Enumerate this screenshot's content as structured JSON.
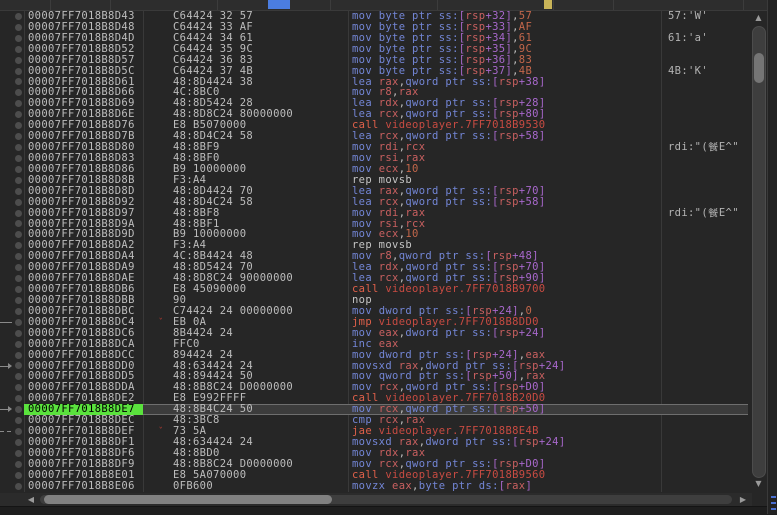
{
  "colors": {
    "accent_blue": "#4b7de0",
    "accent_yellow": "#c9b458",
    "highlight_green": "#5ae23d",
    "selection_bg": "#3c3c3c",
    "mnemonic_blue": "#7386d6",
    "bracket_purple": "#a868cc",
    "register_red": "#c96060",
    "immediate_orange": "#c2664a",
    "flow_mnemonic": "#e0604a",
    "flow_target": "#c84b42",
    "text_gray": "#bcbcbc"
  },
  "glyphs": {
    "up_arrow": "▲",
    "down_arrow": "▼",
    "left_arrow": "◀",
    "right_arrow": "▶",
    "jump_caret": "ˇ",
    "breakpoint_dot": "dot"
  },
  "rows": [
    {
      "addr": "00007FF7018B8D43",
      "bytes": "C64424 32 57",
      "disasm": "mov byte ptr ss:[rsp+32],57",
      "type": "n",
      "comment": "57:'W'",
      "caret": false,
      "gutter": "",
      "sel": false
    },
    {
      "addr": "00007FF7018B8D48",
      "bytes": "C64424 33 AF",
      "disasm": "mov byte ptr ss:[rsp+33],AF",
      "type": "n",
      "comment": "",
      "caret": false,
      "gutter": "",
      "sel": false
    },
    {
      "addr": "00007FF7018B8D4D",
      "bytes": "C64424 34 61",
      "disasm": "mov byte ptr ss:[rsp+34],61",
      "type": "n",
      "comment": "61:'a'",
      "caret": false,
      "gutter": "",
      "sel": false
    },
    {
      "addr": "00007FF7018B8D52",
      "bytes": "C64424 35 9C",
      "disasm": "mov byte ptr ss:[rsp+35],9C",
      "type": "n",
      "comment": "",
      "caret": false,
      "gutter": "",
      "sel": false
    },
    {
      "addr": "00007FF7018B8D57",
      "bytes": "C64424 36 83",
      "disasm": "mov byte ptr ss:[rsp+36],83",
      "type": "n",
      "comment": "",
      "caret": false,
      "gutter": "",
      "sel": false
    },
    {
      "addr": "00007FF7018B8D5C",
      "bytes": "C64424 37 4B",
      "disasm": "mov byte ptr ss:[rsp+37],4B",
      "type": "n",
      "comment": "4B:'K'",
      "caret": false,
      "gutter": "",
      "sel": false
    },
    {
      "addr": "00007FF7018B8D61",
      "bytes": "48:8D4424 38",
      "disasm": "lea rax,qword ptr ss:[rsp+38]",
      "type": "n",
      "comment": "",
      "caret": false,
      "gutter": "",
      "sel": false
    },
    {
      "addr": "00007FF7018B8D66",
      "bytes": "4C:8BC0",
      "disasm": "mov r8,rax",
      "type": "n",
      "comment": "",
      "caret": false,
      "gutter": "",
      "sel": false
    },
    {
      "addr": "00007FF7018B8D69",
      "bytes": "48:8D5424 28",
      "disasm": "lea rdx,qword ptr ss:[rsp+28]",
      "type": "n",
      "comment": "",
      "caret": false,
      "gutter": "",
      "sel": false
    },
    {
      "addr": "00007FF7018B8D6E",
      "bytes": "48:8D8C24 80000000",
      "disasm": "lea rcx,qword ptr ss:[rsp+80]",
      "type": "n",
      "comment": "",
      "caret": false,
      "gutter": "",
      "sel": false
    },
    {
      "addr": "00007FF7018B8D76",
      "bytes": "E8 B5070000",
      "disasm": "call videoplayer.7FF7018B9530",
      "type": "f",
      "comment": "",
      "caret": false,
      "gutter": "",
      "sel": false
    },
    {
      "addr": "00007FF7018B8D7B",
      "bytes": "48:8D4C24 58",
      "disasm": "lea rcx,qword ptr ss:[rsp+58]",
      "type": "n",
      "comment": "",
      "caret": false,
      "gutter": "",
      "sel": false
    },
    {
      "addr": "00007FF7018B8D80",
      "bytes": "48:8BF9",
      "disasm": "mov rdi,rcx",
      "type": "n",
      "comment": "rdi:\"(餐E^\"",
      "caret": false,
      "gutter": "",
      "sel": false
    },
    {
      "addr": "00007FF7018B8D83",
      "bytes": "48:8BF0",
      "disasm": "mov rsi,rax",
      "type": "n",
      "comment": "",
      "caret": false,
      "gutter": "",
      "sel": false
    },
    {
      "addr": "00007FF7018B8D86",
      "bytes": "B9 10000000",
      "disasm": "mov ecx,10",
      "type": "n",
      "comment": "",
      "caret": false,
      "gutter": "",
      "sel": false
    },
    {
      "addr": "00007FF7018B8D8B",
      "bytes": "F3:A4",
      "disasm": "rep movsb",
      "type": "p",
      "comment": "",
      "caret": false,
      "gutter": "",
      "sel": false
    },
    {
      "addr": "00007FF7018B8D8D",
      "bytes": "48:8D4424 70",
      "disasm": "lea rax,qword ptr ss:[rsp+70]",
      "type": "n",
      "comment": "",
      "caret": false,
      "gutter": "",
      "sel": false
    },
    {
      "addr": "00007FF7018B8D92",
      "bytes": "48:8D4C24 58",
      "disasm": "lea rcx,qword ptr ss:[rsp+58]",
      "type": "n",
      "comment": "",
      "caret": false,
      "gutter": "",
      "sel": false
    },
    {
      "addr": "00007FF7018B8D97",
      "bytes": "48:8BF8",
      "disasm": "mov rdi,rax",
      "type": "n",
      "comment": "rdi:\"(餐E^\"",
      "caret": false,
      "gutter": "",
      "sel": false
    },
    {
      "addr": "00007FF7018B8D9A",
      "bytes": "48:8BF1",
      "disasm": "mov rsi,rcx",
      "type": "n",
      "comment": "",
      "caret": false,
      "gutter": "",
      "sel": false
    },
    {
      "addr": "00007FF7018B8D9D",
      "bytes": "B9 10000000",
      "disasm": "mov ecx,10",
      "type": "n",
      "comment": "",
      "caret": false,
      "gutter": "",
      "sel": false
    },
    {
      "addr": "00007FF7018B8DA2",
      "bytes": "F3:A4",
      "disasm": "rep movsb",
      "type": "p",
      "comment": "",
      "caret": false,
      "gutter": "",
      "sel": false
    },
    {
      "addr": "00007FF7018B8DA4",
      "bytes": "4C:8B4424 48",
      "disasm": "mov r8,qword ptr ss:[rsp+48]",
      "type": "n",
      "comment": "",
      "caret": false,
      "gutter": "",
      "sel": false
    },
    {
      "addr": "00007FF7018B8DA9",
      "bytes": "48:8D5424 70",
      "disasm": "lea rdx,qword ptr ss:[rsp+70]",
      "type": "n",
      "comment": "",
      "caret": false,
      "gutter": "",
      "sel": false
    },
    {
      "addr": "00007FF7018B8DAE",
      "bytes": "48:8D8C24 90000000",
      "disasm": "lea rcx,qword ptr ss:[rsp+90]",
      "type": "n",
      "comment": "",
      "caret": false,
      "gutter": "",
      "sel": false
    },
    {
      "addr": "00007FF7018B8DB6",
      "bytes": "E8 45090000",
      "disasm": "call videoplayer.7FF7018B9700",
      "type": "f",
      "comment": "",
      "caret": false,
      "gutter": "",
      "sel": false
    },
    {
      "addr": "00007FF7018B8DBB",
      "bytes": "90",
      "disasm": "nop",
      "type": "p",
      "comment": "",
      "caret": false,
      "gutter": "",
      "sel": false
    },
    {
      "addr": "00007FF7018B8DBC",
      "bytes": "C74424 24 00000000",
      "disasm": "mov dword ptr ss:[rsp+24],0",
      "type": "n",
      "comment": "",
      "caret": false,
      "gutter": "",
      "sel": false
    },
    {
      "addr": "00007FF7018B8DC4",
      "bytes": "EB 0A",
      "disasm": "jmp videoplayer.7FF7018B8DD0",
      "type": "f",
      "comment": "",
      "caret": true,
      "gutter": "line",
      "sel": false
    },
    {
      "addr": "00007FF7018B8DC6",
      "bytes": "8B4424 24",
      "disasm": "mov eax,dword ptr ss:[rsp+24]",
      "type": "n",
      "comment": "",
      "caret": false,
      "gutter": "",
      "sel": false
    },
    {
      "addr": "00007FF7018B8DCA",
      "bytes": "FFC0",
      "disasm": "inc eax",
      "type": "n",
      "comment": "",
      "caret": false,
      "gutter": "",
      "sel": false
    },
    {
      "addr": "00007FF7018B8DCC",
      "bytes": "894424 24",
      "disasm": "mov dword ptr ss:[rsp+24],eax",
      "type": "n",
      "comment": "",
      "caret": false,
      "gutter": "",
      "sel": false
    },
    {
      "addr": "00007FF7018B8DD0",
      "bytes": "48:634424 24",
      "disasm": "movsxd rax,dword ptr ss:[rsp+24]",
      "type": "n",
      "comment": "",
      "caret": false,
      "gutter": "arrow",
      "sel": false
    },
    {
      "addr": "00007FF7018B8DD5",
      "bytes": "48:894424 50",
      "disasm": "mov qword ptr ss:[rsp+50],rax",
      "type": "n",
      "comment": "",
      "caret": false,
      "gutter": "",
      "sel": false
    },
    {
      "addr": "00007FF7018B8DDA",
      "bytes": "48:8B8C24 D0000000",
      "disasm": "mov rcx,qword ptr ss:[rsp+D0]",
      "type": "n",
      "comment": "",
      "caret": false,
      "gutter": "",
      "sel": false
    },
    {
      "addr": "00007FF7018B8DE2",
      "bytes": "E8 E992FFFF",
      "disasm": "call videoplayer.7FF7018B20D0",
      "type": "f",
      "comment": "",
      "caret": false,
      "gutter": "",
      "sel": false
    },
    {
      "addr": "00007FF7018B8DE7",
      "bytes": "48:8B4C24 50",
      "disasm": "mov rcx,qword ptr ss:[rsp+50]",
      "type": "n",
      "comment": "",
      "caret": false,
      "gutter": "arrow",
      "sel": true
    },
    {
      "addr": "00007FF7018B8DEC",
      "bytes": "48:3BC8",
      "disasm": "cmp rcx,rax",
      "type": "n",
      "comment": "",
      "caret": false,
      "gutter": "",
      "sel": false
    },
    {
      "addr": "00007FF7018B8DEF",
      "bytes": "73 5A",
      "disasm": "jae videoplayer.7FF7018B8E4B",
      "type": "f",
      "comment": "",
      "caret": true,
      "gutter": "dash",
      "sel": false
    },
    {
      "addr": "00007FF7018B8DF1",
      "bytes": "48:634424 24",
      "disasm": "movsxd rax,dword ptr ss:[rsp+24]",
      "type": "n",
      "comment": "",
      "caret": false,
      "gutter": "",
      "sel": false
    },
    {
      "addr": "00007FF7018B8DF6",
      "bytes": "48:8BD0",
      "disasm": "mov rdx,rax",
      "type": "n",
      "comment": "",
      "caret": false,
      "gutter": "",
      "sel": false
    },
    {
      "addr": "00007FF7018B8DF9",
      "bytes": "48:8B8C24 D0000000",
      "disasm": "mov rcx,qword ptr ss:[rsp+D0]",
      "type": "n",
      "comment": "",
      "caret": false,
      "gutter": "",
      "sel": false
    },
    {
      "addr": "00007FF7018B8E01",
      "bytes": "E8 5A070000",
      "disasm": "call videoplayer.7FF7018B9560",
      "type": "f",
      "comment": "",
      "caret": false,
      "gutter": "",
      "sel": false
    },
    {
      "addr": "00007FF7018B8E06",
      "bytes": "0FB600",
      "disasm": "movzx eax,byte ptr ds:[rax]",
      "type": "n",
      "comment": "",
      "caret": false,
      "gutter": "",
      "sel": false
    }
  ]
}
